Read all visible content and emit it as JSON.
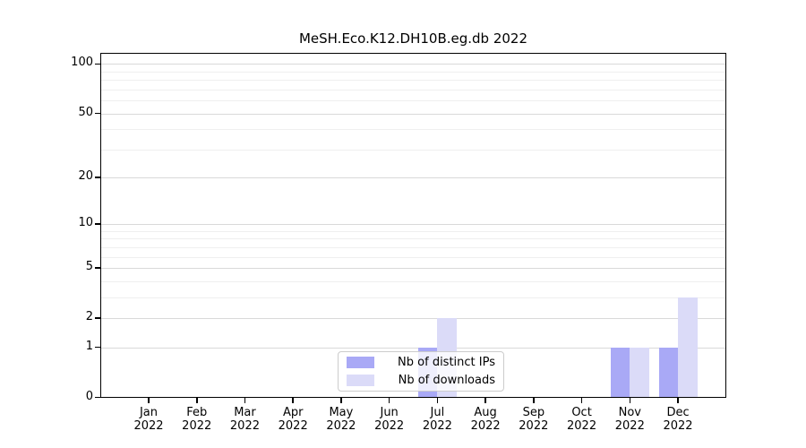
{
  "chart_data": {
    "type": "bar",
    "title": "MeSH.Eco.K12.DH10B.eg.db 2022",
    "categories": [
      "Jan 2022",
      "Feb 2022",
      "Mar 2022",
      "Apr 2022",
      "May 2022",
      "Jun 2022",
      "Jul 2022",
      "Aug 2022",
      "Sep 2022",
      "Oct 2022",
      "Nov 2022",
      "Dec 2022"
    ],
    "series": [
      {
        "name": "Nb of distinct IPs",
        "color": "#a9a9f6",
        "values": [
          0,
          0,
          0,
          0,
          0,
          0,
          1,
          0,
          0,
          0,
          1,
          1
        ]
      },
      {
        "name": "Nb of downloads",
        "color": "#dbdbf8",
        "values": [
          0,
          0,
          0,
          0,
          0,
          0,
          2,
          0,
          0,
          0,
          1,
          3
        ]
      }
    ],
    "xlabel": "",
    "ylabel": "",
    "yscale": "log1p",
    "ylim": [
      0,
      115
    ],
    "yticks": [
      0,
      1,
      2,
      5,
      10,
      20,
      50,
      100
    ],
    "minor_gridlines": [
      3,
      4,
      6,
      7,
      8,
      9,
      30,
      40,
      60,
      70,
      80,
      90
    ],
    "grid": true,
    "legend_position": "lower center",
    "colors": {
      "major_grid": "#d9d9d9",
      "minor_grid": "#efefef",
      "spine": "#000000",
      "background": "#ffffff"
    }
  }
}
